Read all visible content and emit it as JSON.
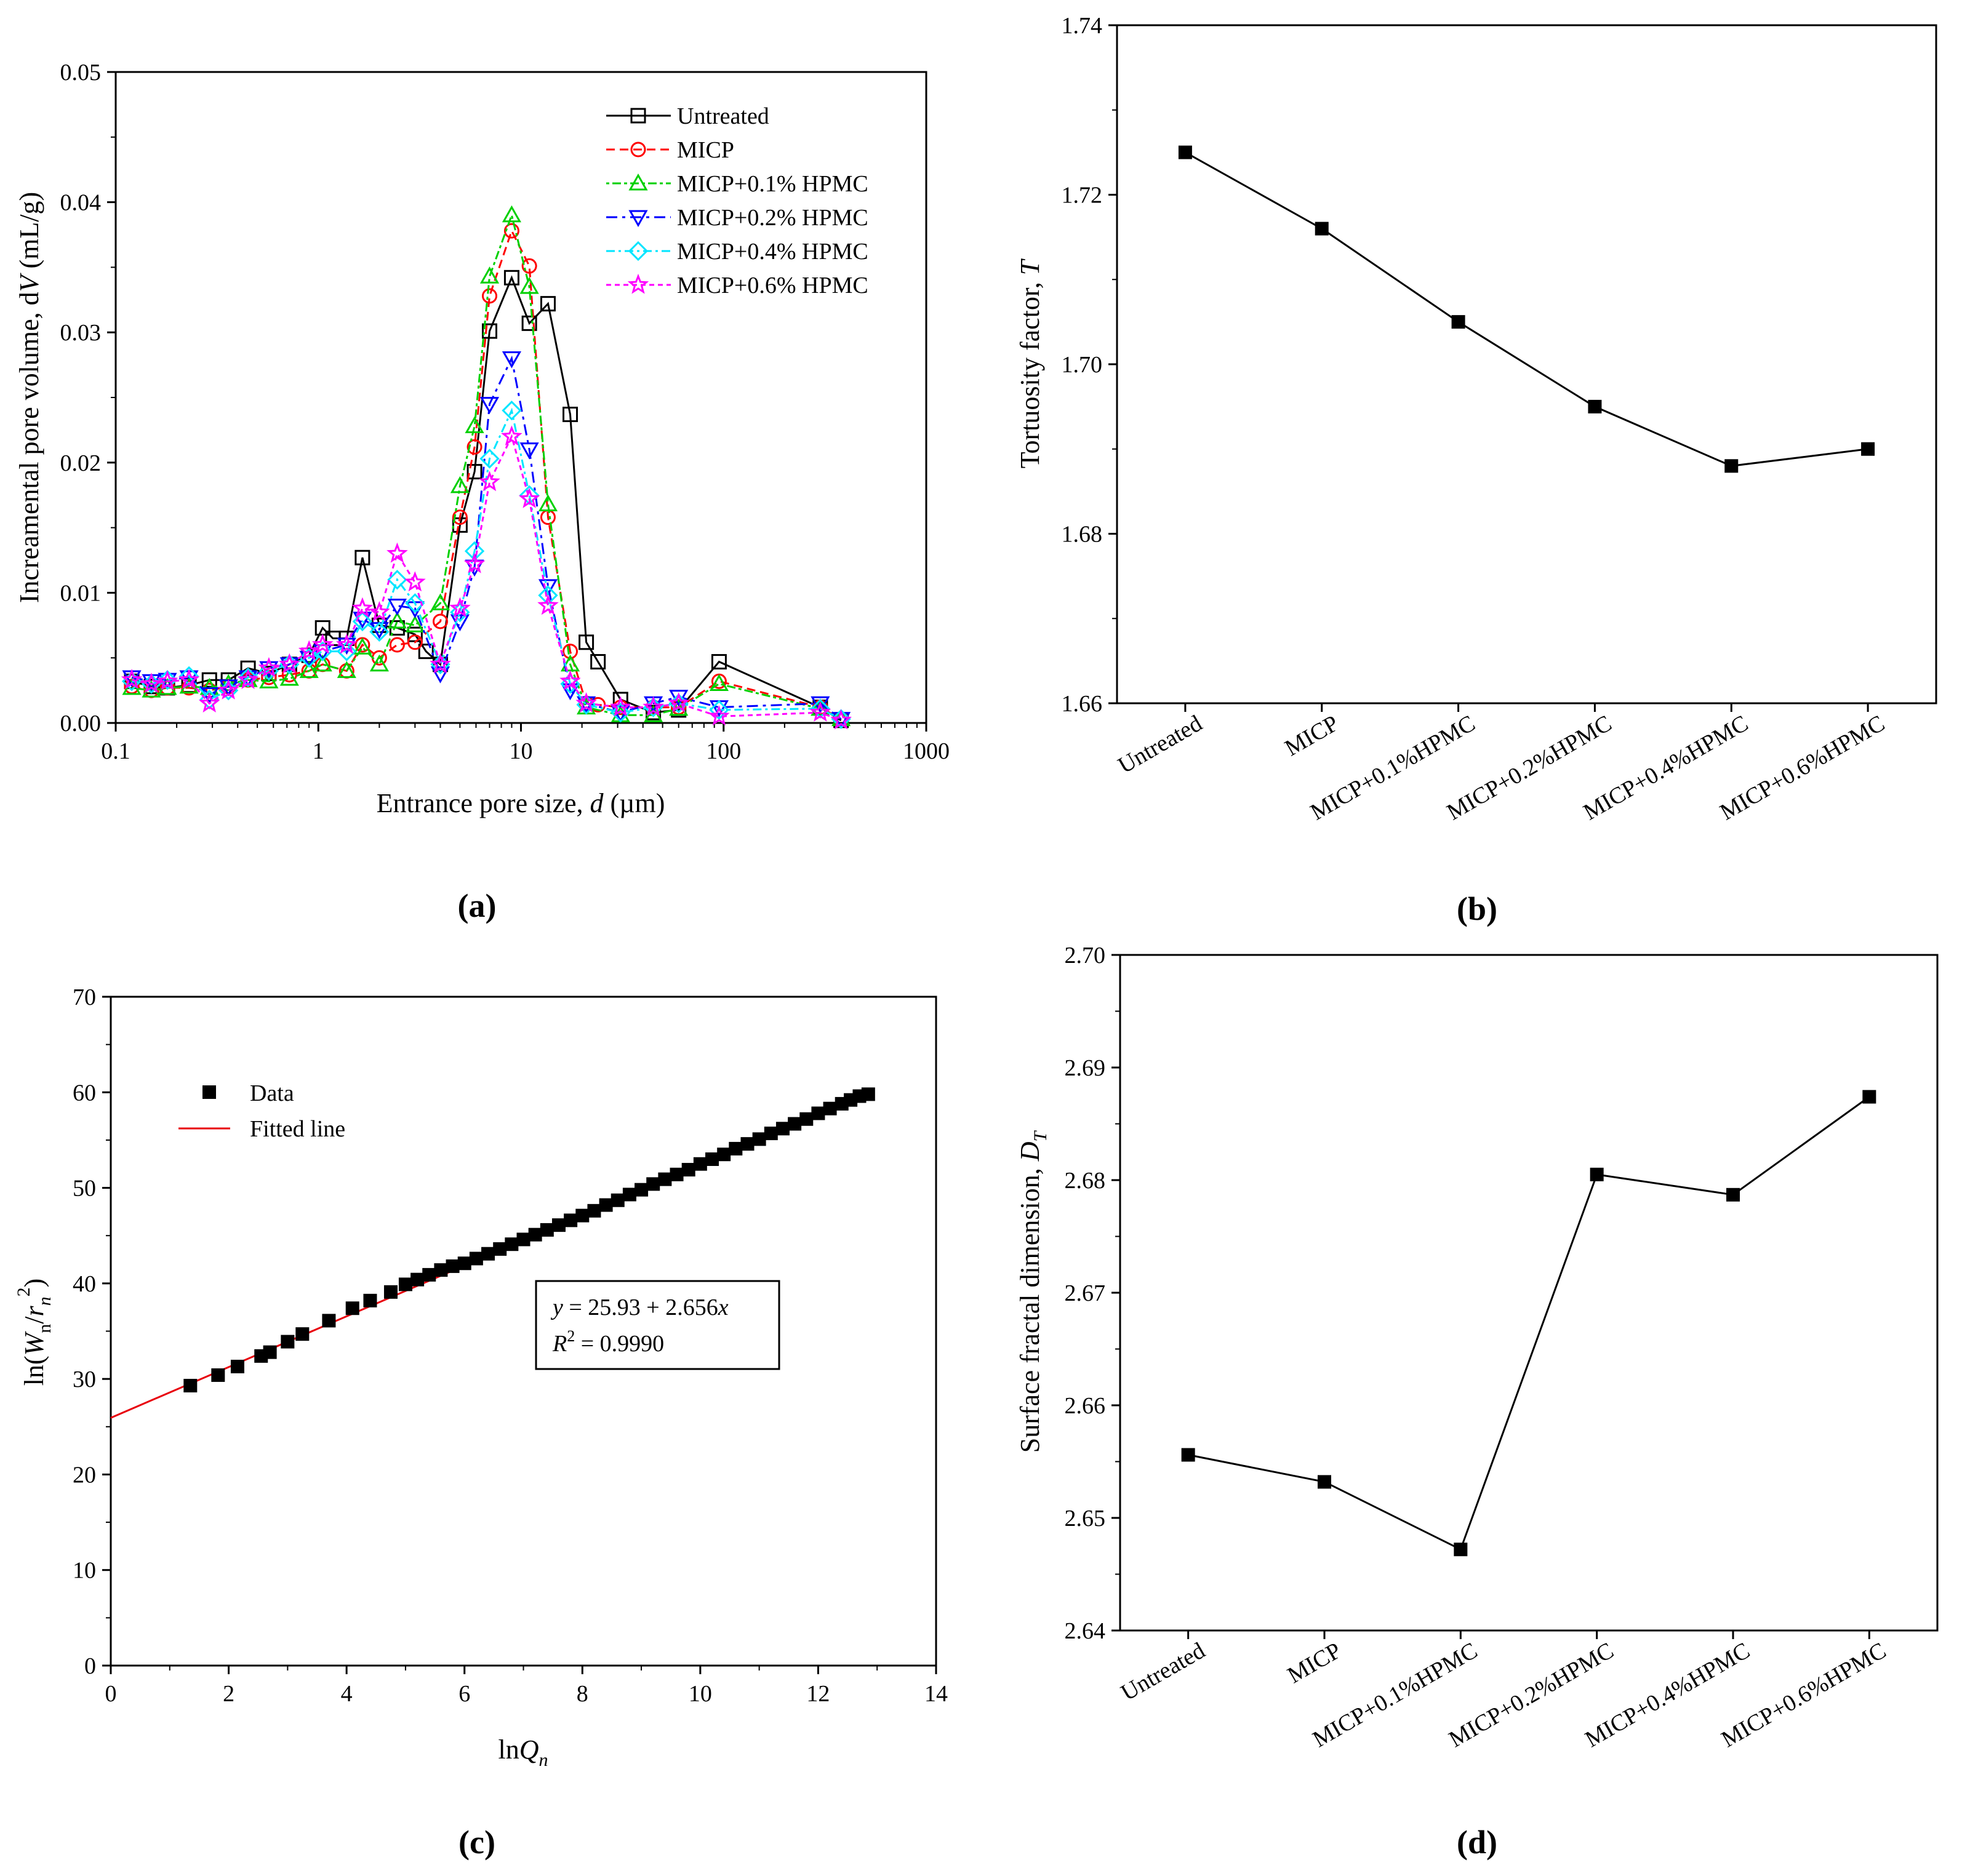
{
  "chart_data": [
    {
      "panel": "(a)",
      "type": "line",
      "xscale": "log",
      "xlabel": "Entrance pore size, d (µm)",
      "ylabel": "Increamental pore volume, dV (mL/g)",
      "xlim": [
        0.1,
        1000
      ],
      "ylim": [
        0,
        0.05
      ],
      "xticks": [
        "0.1",
        "1",
        "10",
        "100",
        "1000"
      ],
      "yticks": [
        "0.00",
        "0.01",
        "0.02",
        "0.03",
        "0.04",
        "0.05"
      ],
      "legend_position": "top-right",
      "series": [
        {
          "name": "Untreated",
          "color": "#000000",
          "dash": "",
          "marker": "square",
          "x": [
            0.12,
            0.15,
            0.18,
            0.23,
            0.29,
            0.36,
            0.45,
            0.57,
            0.72,
            0.9,
            1.05,
            1.18,
            1.38,
            1.65,
            2.0,
            2.45,
            3.0,
            3.4,
            4.0,
            5.0,
            5.9,
            7.0,
            9.0,
            11.0,
            13.6,
            17.5,
            21.0,
            24.0,
            31.0,
            45.0,
            60.0,
            95.0,
            300.0,
            380.0
          ],
          "y": [
            0.0032,
            0.0028,
            0.0027,
            0.0029,
            0.0033,
            0.0033,
            0.0042,
            0.0038,
            0.0045,
            0.0052,
            0.0073,
            0.0065,
            0.0065,
            0.0127,
            0.0075,
            0.0073,
            0.0068,
            0.0055,
            0.0045,
            0.0152,
            0.0193,
            0.0301,
            0.0342,
            0.0307,
            0.0322,
            0.0237,
            0.0062,
            0.0047,
            0.0018,
            0.0008,
            0.001,
            0.0047,
            0.0012,
            0.0002
          ]
        },
        {
          "name": "MICP",
          "color": "#ff0000",
          "dash": "14,8",
          "marker": "circle",
          "x": [
            0.12,
            0.15,
            0.18,
            0.23,
            0.29,
            0.36,
            0.45,
            0.57,
            0.72,
            0.9,
            1.05,
            1.38,
            1.65,
            2.0,
            2.45,
            3.0,
            4.0,
            5.0,
            5.9,
            7.0,
            9.0,
            11.0,
            13.6,
            17.5,
            21.0,
            24.0,
            31.0,
            45.0,
            60.0,
            95.0,
            300.0,
            380.0
          ],
          "y": [
            0.0028,
            0.0025,
            0.0027,
            0.0027,
            0.0025,
            0.0028,
            0.0033,
            0.0035,
            0.0037,
            0.004,
            0.0045,
            0.004,
            0.006,
            0.005,
            0.006,
            0.0062,
            0.0078,
            0.0158,
            0.0212,
            0.0328,
            0.0378,
            0.0351,
            0.0158,
            0.0055,
            0.0015,
            0.0014,
            0.0012,
            0.0012,
            0.0012,
            0.0032,
            0.0012,
            0.0003
          ]
        },
        {
          "name": "MICP+0.1% HPMC",
          "color": "#00d000",
          "dash": "5,5,14,5",
          "marker": "triangle-up",
          "x": [
            0.12,
            0.15,
            0.18,
            0.23,
            0.29,
            0.36,
            0.45,
            0.57,
            0.72,
            0.9,
            1.05,
            1.38,
            1.65,
            2.0,
            2.45,
            3.0,
            4.0,
            5.0,
            5.9,
            7.0,
            9.0,
            11.0,
            13.6,
            17.5,
            21.0,
            31.0,
            45.0,
            60.0,
            95.0,
            300.0,
            380.0
          ],
          "y": [
            0.0027,
            0.0025,
            0.0027,
            0.0028,
            0.0027,
            0.003,
            0.0033,
            0.0032,
            0.0034,
            0.004,
            0.0045,
            0.004,
            0.0058,
            0.0045,
            0.0078,
            0.0075,
            0.0092,
            0.0182,
            0.0228,
            0.0343,
            0.039,
            0.0335,
            0.0168,
            0.0045,
            0.0012,
            0.0006,
            0.0006,
            0.0011,
            0.003,
            0.0011,
            0.0003
          ]
        },
        {
          "name": "MICP+0.2% HPMC",
          "color": "#0000ff",
          "dash": "18,8,5,8",
          "marker": "triangle-down",
          "x": [
            0.12,
            0.15,
            0.18,
            0.23,
            0.29,
            0.36,
            0.45,
            0.57,
            0.72,
            0.9,
            1.05,
            1.38,
            1.65,
            2.0,
            2.45,
            3.0,
            4.0,
            5.0,
            5.9,
            7.0,
            9.0,
            11.0,
            13.6,
            17.5,
            21.0,
            31.0,
            45.0,
            60.0,
            95.0,
            300.0,
            380.0
          ],
          "y": [
            0.0035,
            0.0032,
            0.0033,
            0.0035,
            0.0022,
            0.0028,
            0.0035,
            0.0042,
            0.0045,
            0.005,
            0.0055,
            0.006,
            0.008,
            0.0072,
            0.009,
            0.0088,
            0.0038,
            0.0078,
            0.012,
            0.0245,
            0.028,
            0.021,
            0.0105,
            0.0025,
            0.0015,
            0.0008,
            0.0015,
            0.002,
            0.0012,
            0.0015,
            0.0003
          ]
        },
        {
          "name": "MICP+0.4% HPMC",
          "color": "#00e5ff",
          "dash": "14,6,4,6",
          "marker": "diamond",
          "x": [
            0.12,
            0.15,
            0.18,
            0.23,
            0.29,
            0.36,
            0.45,
            0.57,
            0.72,
            0.9,
            1.05,
            1.38,
            1.65,
            2.0,
            2.45,
            3.0,
            4.0,
            5.0,
            5.9,
            7.0,
            9.0,
            11.0,
            13.6,
            17.5,
            21.0,
            31.0,
            45.0,
            60.0,
            95.0,
            300.0,
            380.0
          ],
          "y": [
            0.0032,
            0.003,
            0.0033,
            0.0036,
            0.0018,
            0.0025,
            0.0035,
            0.004,
            0.0045,
            0.005,
            0.0055,
            0.0055,
            0.0078,
            0.007,
            0.011,
            0.0092,
            0.0045,
            0.0085,
            0.0132,
            0.0203,
            0.024,
            0.0175,
            0.0098,
            0.003,
            0.0014,
            0.0008,
            0.0012,
            0.0015,
            0.001,
            0.0011,
            0.0003
          ]
        },
        {
          "name": "MICP+0.6% HPMC",
          "color": "#ff00ff",
          "dash": "8,6",
          "marker": "star",
          "x": [
            0.12,
            0.15,
            0.18,
            0.23,
            0.29,
            0.36,
            0.45,
            0.57,
            0.72,
            0.9,
            1.05,
            1.38,
            1.65,
            2.0,
            2.45,
            3.0,
            4.0,
            5.0,
            5.9,
            7.0,
            9.0,
            11.0,
            13.6,
            17.5,
            21.0,
            31.0,
            45.0,
            60.0,
            95.0,
            300.0,
            380.0
          ],
          "y": [
            0.0033,
            0.003,
            0.0032,
            0.0033,
            0.0015,
            0.0025,
            0.0033,
            0.0042,
            0.0045,
            0.0055,
            0.006,
            0.006,
            0.0088,
            0.0085,
            0.013,
            0.0108,
            0.0045,
            0.0088,
            0.0122,
            0.0185,
            0.022,
            0.0172,
            0.009,
            0.0032,
            0.0015,
            0.0012,
            0.0012,
            0.0015,
            0.0005,
            0.0008,
            0.0002
          ]
        }
      ]
    },
    {
      "panel": "(b)",
      "type": "line",
      "ylabel": "Tortuosity factor, T",
      "categories": [
        "Untreated",
        "MICP",
        "MICP+0.1%HPMC",
        "MICP+0.2%HPMC",
        "MICP+0.4%HPMC",
        "MICP+0.6%HPMC"
      ],
      "values": [
        1.725,
        1.716,
        1.705,
        1.695,
        1.688,
        1.69
      ],
      "ylim": [
        1.66,
        1.74
      ],
      "yticks": [
        "1.66",
        "1.68",
        "1.70",
        "1.72",
        "1.74"
      ],
      "color": "#000000"
    },
    {
      "panel": "(c)",
      "type": "scatter",
      "xlabel": "lnQn",
      "ylabel": "ln(Wn/rn2)",
      "xlim": [
        0,
        14
      ],
      "ylim": [
        0,
        70
      ],
      "xticks": [
        "0",
        "2",
        "4",
        "6",
        "8",
        "10",
        "12",
        "14"
      ],
      "yticks": [
        "0",
        "10",
        "20",
        "30",
        "40",
        "50",
        "60",
        "70"
      ],
      "legend_position": "top-left",
      "data_label": "Data",
      "fit_label": "Fitted line",
      "fit_color": "#e8000b",
      "fit": {
        "intercept": 25.93,
        "slope": 2.656,
        "r2": 0.999
      },
      "equation_text": {
        "y_var": "y",
        "eq_rhs": " = 25.93 + 2.656",
        "x_var": "x",
        "r_var": "R",
        "r_exp": "2",
        "r_val": " = 0.9990"
      },
      "x": [
        1.35,
        1.82,
        2.15,
        2.55,
        2.7,
        3.0,
        3.25,
        3.7,
        4.1,
        4.4,
        4.75,
        5.0,
        5.2,
        5.4,
        5.6,
        5.8,
        6.0,
        6.2,
        6.4,
        6.6,
        6.8,
        7.0,
        7.2,
        7.4,
        7.6,
        7.8,
        8.0,
        8.2,
        8.4,
        8.6,
        8.8,
        9.0,
        9.2,
        9.4,
        9.6,
        9.8,
        10.0,
        10.2,
        10.4,
        10.6,
        10.8,
        11.0,
        11.2,
        11.4,
        11.6,
        11.8,
        12.0,
        12.2,
        12.4,
        12.55,
        12.7,
        12.85
      ],
      "y": [
        29.3,
        30.4,
        31.3,
        32.4,
        32.8,
        33.9,
        34.7,
        36.1,
        37.4,
        38.2,
        39.1,
        39.9,
        40.4,
        40.9,
        41.4,
        41.8,
        42.1,
        42.6,
        43.1,
        43.6,
        44.1,
        44.6,
        45.1,
        45.6,
        46.1,
        46.6,
        47.1,
        47.6,
        48.2,
        48.7,
        49.3,
        49.8,
        50.4,
        50.9,
        51.4,
        51.9,
        52.5,
        53.0,
        53.5,
        54.1,
        54.6,
        55.1,
        55.7,
        56.2,
        56.7,
        57.2,
        57.8,
        58.3,
        58.8,
        59.2,
        59.6,
        59.8
      ]
    },
    {
      "panel": "(d)",
      "type": "line",
      "ylabel": "Surface fractal dimension, DT",
      "categories": [
        "Untreated",
        "MICP",
        "MICP+0.1%HPMC",
        "MICP+0.2%HPMC",
        "MICP+0.4%HPMC",
        "MICP+0.6%HPMC"
      ],
      "values": [
        2.6556,
        2.6532,
        2.6472,
        2.6805,
        2.6787,
        2.6874
      ],
      "ylim": [
        2.64,
        2.7
      ],
      "yticks": [
        "2.64",
        "2.65",
        "2.66",
        "2.67",
        "2.68",
        "2.69",
        "2.70"
      ],
      "color": "#000000"
    }
  ],
  "labels": {
    "a": {
      "panel": "(a)",
      "xlabel_pre": "Entrance pore size, ",
      "xlabel_var": "d",
      "xlabel_post": " (µm)",
      "ylabel_pre": "Increamental pore volume, d",
      "ylabel_var": "V",
      "ylabel_post": " (mL/g)"
    },
    "b": {
      "panel": "(b)",
      "ylabel_pre": "Tortuosity factor, ",
      "ylabel_var": "T"
    },
    "c": {
      "panel": "(c)",
      "xlabel_pre": "ln",
      "xlabel_var": "Q",
      "xlabel_sub": "n",
      "ylabel_pre": "ln(",
      "ylabel_var1": "W",
      "ylabel_sub1": "n",
      "ylabel_mid": "/",
      "ylabel_var2": "r",
      "ylabel_sub2": "n",
      "ylabel_sup": "2",
      "ylabel_post": ")"
    },
    "d": {
      "panel": "(d)",
      "ylabel_pre": "Surface fractal dimension, ",
      "ylabel_var": "D",
      "ylabel_sub": "T"
    }
  }
}
